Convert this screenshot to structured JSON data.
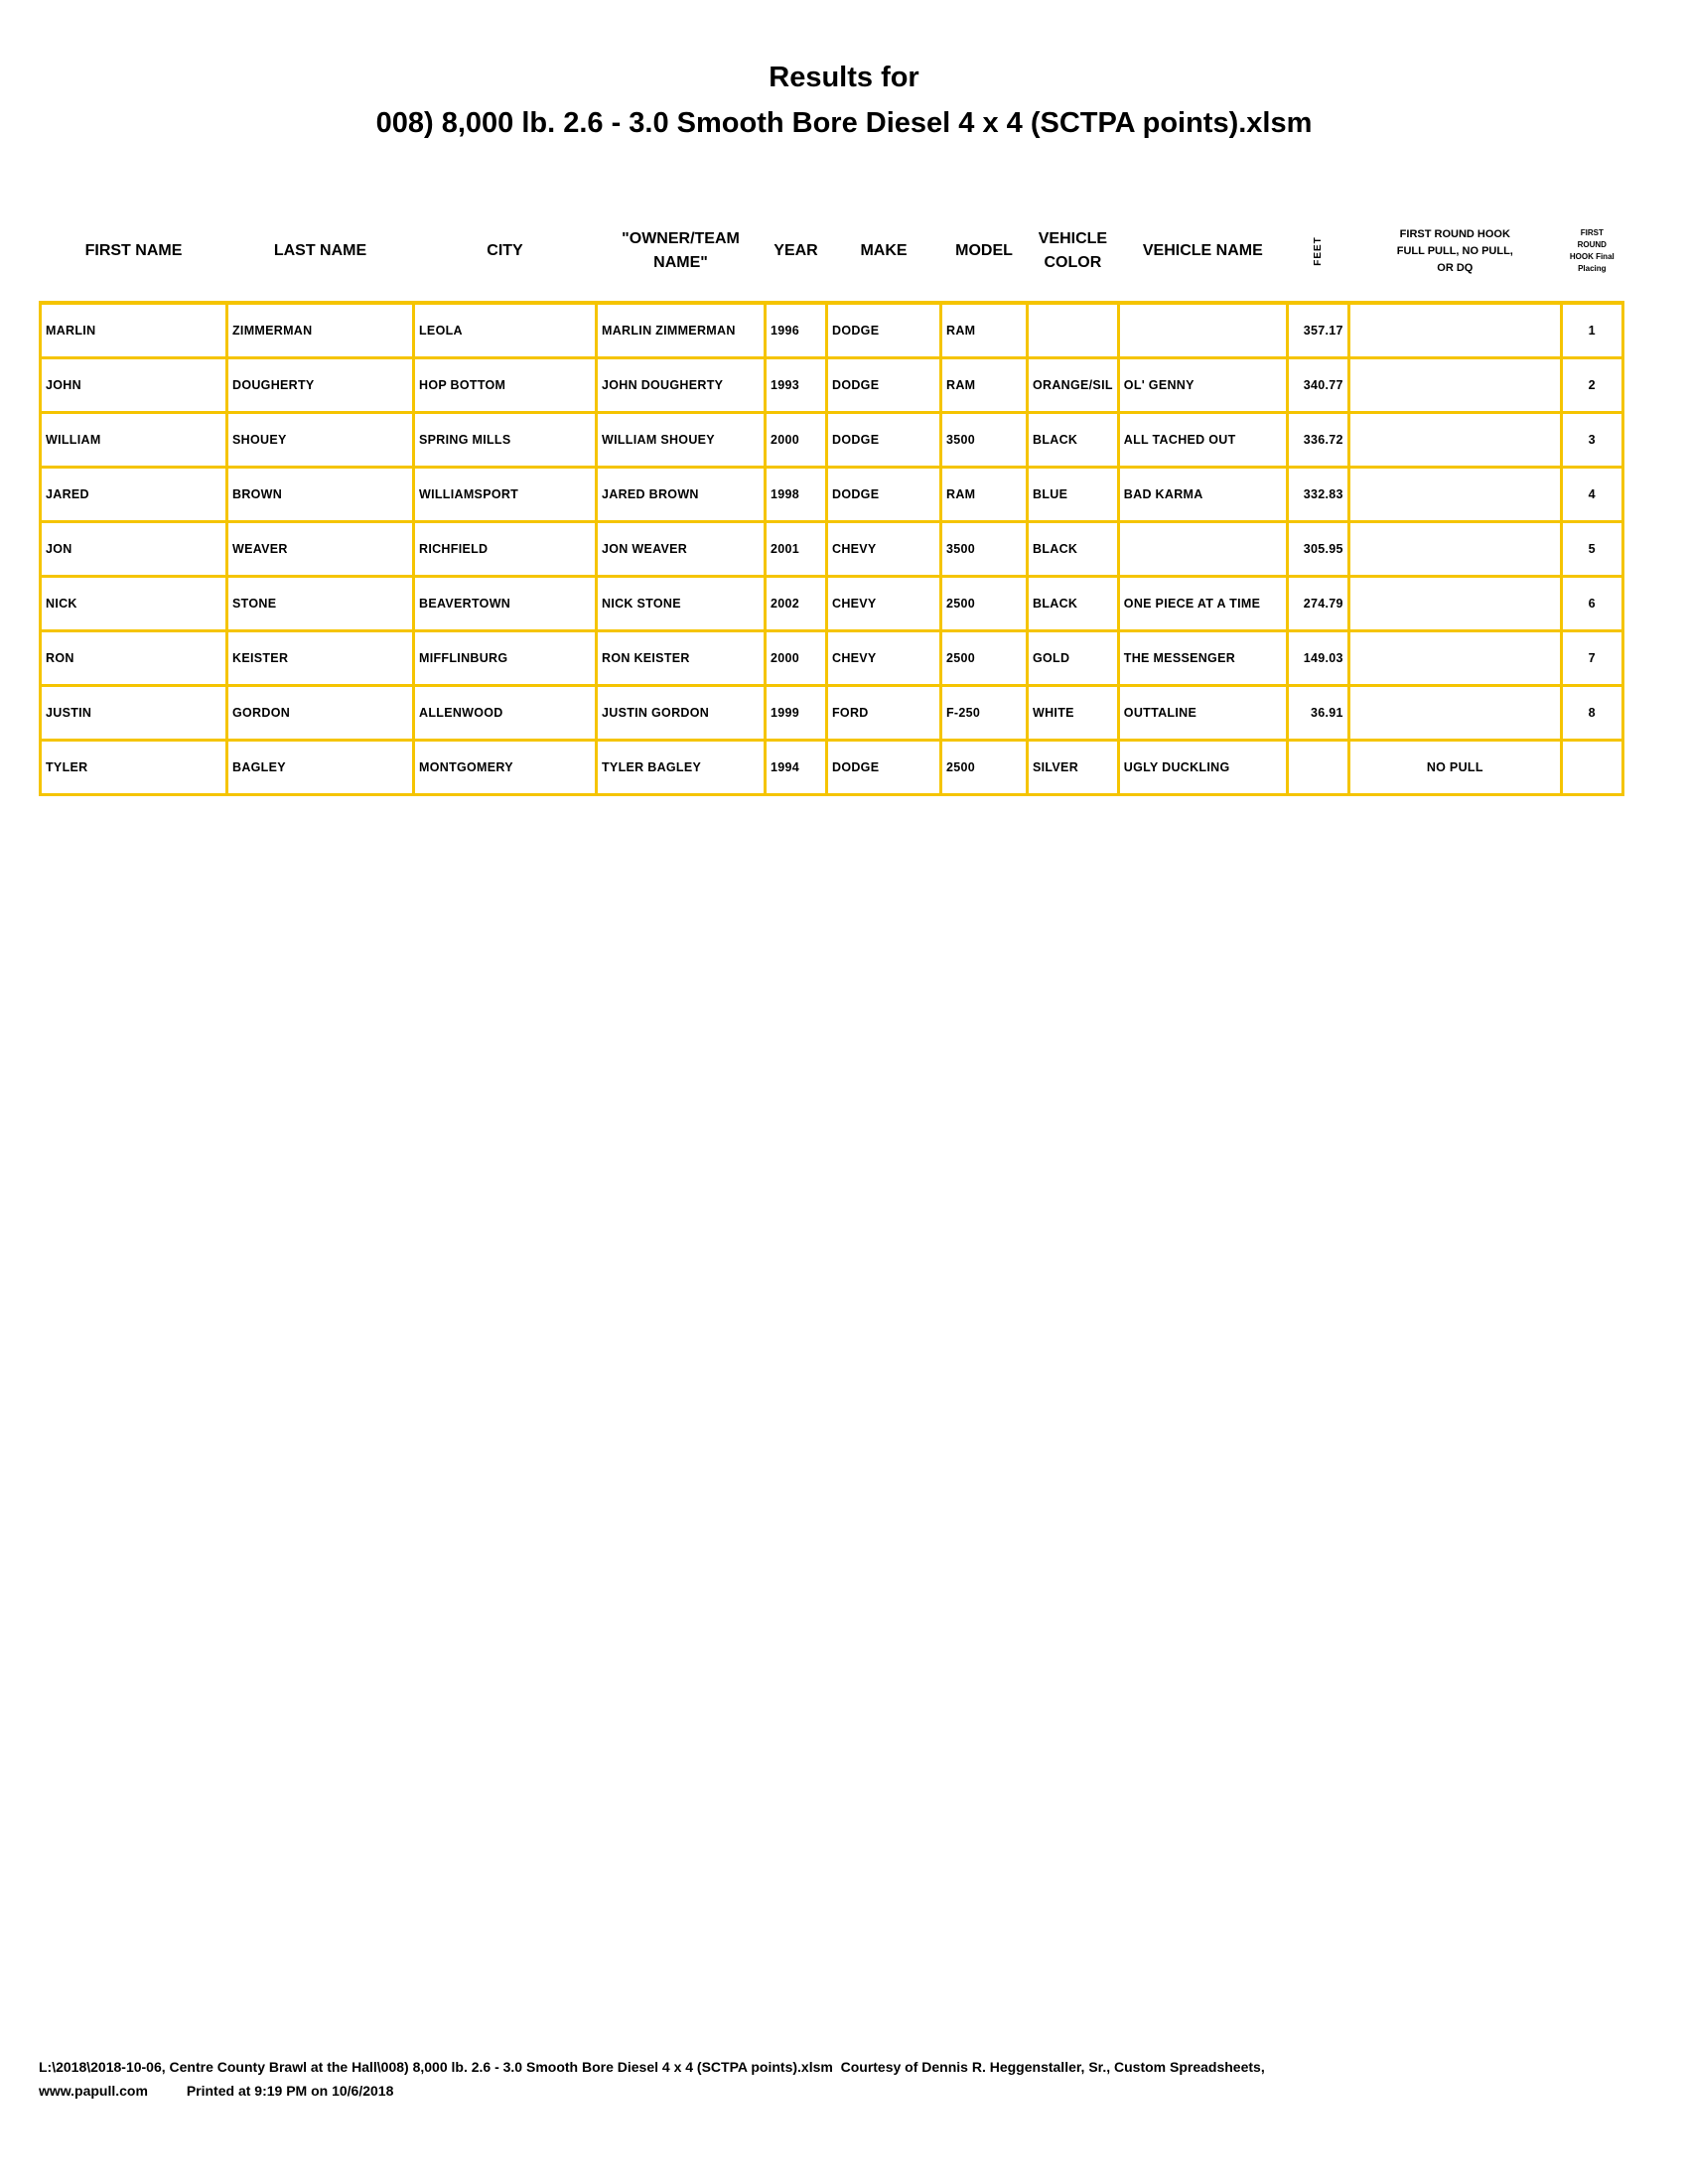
{
  "title": {
    "line1": "Results for",
    "line2": "008) 8,000 lb. 2.6 - 3.0 Smooth Bore Diesel 4 x 4 (SCTPA points).xlsm"
  },
  "table": {
    "headers": [
      "FIRST NAME",
      "LAST NAME",
      "CITY",
      "\"OWNER/TEAM NAME\"",
      "YEAR",
      "MAKE",
      "MODEL",
      "VEHICLE COLOR",
      "VEHICLE NAME",
      "FEET",
      "FIRST ROUND HOOK FULL PULL, NO PULL, OR DQ",
      "FIRST ROUND HOOK Final Placing"
    ],
    "rows": [
      [
        "MARLIN",
        "ZIMMERMAN",
        "LEOLA",
        "MARLIN ZIMMERMAN",
        "1996",
        "DODGE",
        "RAM",
        "",
        "",
        "357.17",
        "",
        "1"
      ],
      [
        "JOHN",
        "DOUGHERTY",
        "HOP BOTTOM",
        "JOHN DOUGHERTY",
        "1993",
        "DODGE",
        "RAM",
        "ORANGE/SIL",
        "OL' GENNY",
        "340.77",
        "",
        "2"
      ],
      [
        "WILLIAM",
        "SHOUEY",
        "SPRING MILLS",
        "WILLIAM SHOUEY",
        "2000",
        "DODGE",
        "3500",
        "BLACK",
        "ALL TACHED OUT",
        "336.72",
        "",
        "3"
      ],
      [
        "JARED",
        "BROWN",
        "WILLIAMSPORT",
        "JARED BROWN",
        "1998",
        "DODGE",
        "RAM",
        "BLUE",
        "BAD KARMA",
        "332.83",
        "",
        "4"
      ],
      [
        "JON",
        "WEAVER",
        "RICHFIELD",
        "JON WEAVER",
        "2001",
        "CHEVY",
        "3500",
        "BLACK",
        "",
        "305.95",
        "",
        "5"
      ],
      [
        "NICK",
        "STONE",
        "BEAVERTOWN",
        "NICK STONE",
        "2002",
        "CHEVY",
        "2500",
        "BLACK",
        "ONE PIECE AT A TIME",
        "274.79",
        "",
        "6"
      ],
      [
        "RON",
        "KEISTER",
        "MIFFLINBURG",
        "RON KEISTER",
        "2000",
        "CHEVY",
        "2500",
        "GOLD",
        "THE MESSENGER",
        "149.03",
        "",
        "7"
      ],
      [
        "JUSTIN",
        "GORDON",
        "ALLENWOOD",
        "JUSTIN GORDON",
        "1999",
        "FORD",
        "F-250",
        "WHITE",
        "OUTTALINE",
        "36.91",
        "",
        "8"
      ],
      [
        "TYLER",
        "BAGLEY",
        "MONTGOMERY",
        "TYLER BAGLEY",
        "1994",
        "DODGE",
        "2500",
        "SILVER",
        "UGLY DUCKLING",
        "",
        "NO PULL",
        ""
      ]
    ]
  },
  "footer": {
    "line1": "L:\\2018\\2018-10-06, Centre County Brawl at the Hall\\008) 8,000 lb. 2.6 - 3.0 Smooth Bore Diesel 4 x 4 (SCTPA points).xlsm  Courtesy of Dennis R. Heggenstaller, Sr., Custom Spreadsheets,",
    "line2": "www.papull.com          Printed at 9:19 PM on 10/6/2018"
  },
  "colors": {
    "grid": "#f5c400"
  }
}
